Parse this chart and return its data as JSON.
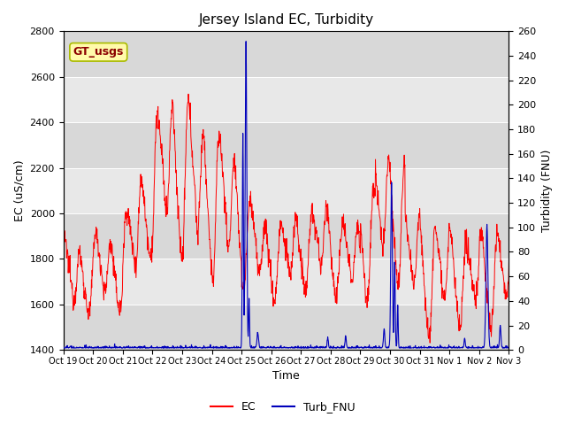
{
  "title": "Jersey Island EC, Turbidity",
  "xlabel": "Time",
  "ylabel_left": "EC (uS/cm)",
  "ylabel_right": "Turbidity (FNU)",
  "ylim_left": [
    1400,
    2800
  ],
  "ylim_right": [
    0,
    260
  ],
  "yticks_left": [
    1400,
    1600,
    1800,
    2000,
    2200,
    2400,
    2600,
    2800
  ],
  "yticks_right": [
    0,
    20,
    40,
    60,
    80,
    100,
    120,
    140,
    160,
    180,
    200,
    220,
    240,
    260
  ],
  "ec_color": "#FF0000",
  "turb_color": "#0000BB",
  "background_color": "#FFFFFF",
  "band_colors": [
    "#D8D8D8",
    "#E8E8E8"
  ],
  "legend_label_ec": "EC",
  "legend_label_turb": "Turb_FNU",
  "annotation_text": "GT_usgs",
  "xtick_labels": [
    "Oct 19",
    "Oct 20",
    "Oct 21",
    "Oct 22",
    "Oct 23",
    "Oct 24",
    "Oct 25",
    "Oct 26",
    "Oct 27",
    "Oct 28",
    "Oct 29",
    "Oct 30",
    "Oct 31",
    "Nov 1",
    "Nov 2",
    "Nov 3"
  ],
  "n_days": 15,
  "pts_per_day": 96
}
